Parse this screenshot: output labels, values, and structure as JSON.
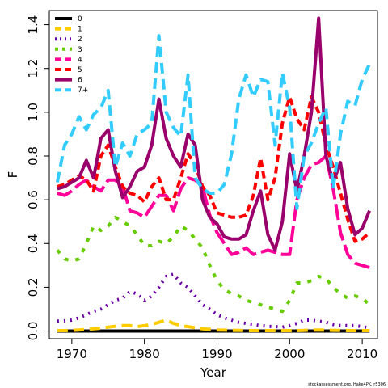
{
  "credit": "stockassessment.org, Hake4PK, r5306",
  "chart_data": {
    "type": "line",
    "xlabel": "Year",
    "ylabel": "F",
    "xlim": [
      1966.9,
      2012.1
    ],
    "ylim": [
      -0.035,
      1.465
    ],
    "x_ticks": [
      1970,
      1980,
      1990,
      2000,
      2010
    ],
    "y_ticks": [
      0.0,
      0.2,
      0.4,
      0.6,
      0.8,
      1.0,
      1.2,
      1.4
    ],
    "x_tick_labels": [
      "1970",
      "1980",
      "1990",
      "2000",
      "2010"
    ],
    "y_tick_labels": [
      "0.0",
      "0.2",
      "0.4",
      "0.6",
      "0.8",
      "1.0",
      "1.2",
      "1.4"
    ],
    "grid": false,
    "legend_position": "top-left",
    "x": [
      1968,
      1969,
      1970,
      1971,
      1972,
      1973,
      1974,
      1975,
      1976,
      1977,
      1978,
      1979,
      1980,
      1981,
      1982,
      1983,
      1984,
      1985,
      1986,
      1987,
      1988,
      1989,
      1990,
      1991,
      1992,
      1993,
      1994,
      1995,
      1996,
      1997,
      1998,
      1999,
      2000,
      2001,
      2002,
      2003,
      2004,
      2005,
      2006,
      2007,
      2008,
      2009,
      2010,
      2011
    ],
    "series": [
      {
        "name": "0",
        "color": "#000000",
        "dash": "solid",
        "values": [
          0.0,
          0.0,
          0.0,
          0.0,
          0.0,
          0.0,
          0.0,
          0.0,
          0.0,
          0.0,
          0.0,
          0.0,
          0.0,
          0.0,
          0.0,
          0.0,
          0.0,
          0.0,
          0.0,
          0.0,
          0.0,
          0.0,
          0.0,
          0.0,
          0.0,
          0.0,
          0.0,
          0.0,
          0.0,
          0.0,
          0.0,
          0.0,
          0.0,
          0.0,
          0.0,
          0.0,
          0.0,
          0.0,
          0.0,
          0.0,
          0.0,
          0.0,
          0.0,
          0.0
        ]
      },
      {
        "name": "1",
        "color": "#FFCC00",
        "dash": "long",
        "values": [
          0.002,
          0.002,
          0.003,
          0.005,
          0.008,
          0.01,
          0.013,
          0.018,
          0.022,
          0.025,
          0.025,
          0.02,
          0.025,
          0.03,
          0.04,
          0.05,
          0.035,
          0.025,
          0.02,
          0.015,
          0.01,
          0.008,
          0.005,
          0.004,
          0.003,
          0.003,
          0.002,
          0.002,
          0.002,
          0.002,
          0.002,
          0.002,
          0.002,
          0.002,
          0.003,
          0.004,
          0.005,
          0.004,
          0.003,
          0.003,
          0.002,
          0.002,
          0.002,
          0.002
        ]
      },
      {
        "name": "2",
        "color": "#6A00A8",
        "dash": "dot",
        "values": [
          0.045,
          0.047,
          0.05,
          0.06,
          0.075,
          0.09,
          0.1,
          0.12,
          0.14,
          0.15,
          0.18,
          0.17,
          0.14,
          0.16,
          0.2,
          0.25,
          0.26,
          0.22,
          0.2,
          0.16,
          0.12,
          0.1,
          0.075,
          0.06,
          0.05,
          0.04,
          0.035,
          0.03,
          0.025,
          0.022,
          0.02,
          0.018,
          0.025,
          0.035,
          0.05,
          0.05,
          0.045,
          0.04,
          0.03,
          0.025,
          0.025,
          0.025,
          0.02,
          0.015
        ]
      },
      {
        "name": "3",
        "color": "#66CC00",
        "dash": "dashdot",
        "values": [
          0.37,
          0.33,
          0.32,
          0.33,
          0.4,
          0.48,
          0.46,
          0.48,
          0.52,
          0.5,
          0.48,
          0.44,
          0.39,
          0.39,
          0.41,
          0.4,
          0.43,
          0.48,
          0.46,
          0.42,
          0.38,
          0.3,
          0.23,
          0.19,
          0.17,
          0.16,
          0.14,
          0.13,
          0.12,
          0.11,
          0.1,
          0.09,
          0.14,
          0.22,
          0.22,
          0.23,
          0.25,
          0.24,
          0.2,
          0.17,
          0.15,
          0.16,
          0.15,
          0.12
        ]
      },
      {
        "name": "4",
        "color": "#FF0099",
        "dash": "longdash",
        "values": [
          0.63,
          0.62,
          0.64,
          0.67,
          0.69,
          0.66,
          0.64,
          0.69,
          0.69,
          0.66,
          0.55,
          0.54,
          0.52,
          0.57,
          0.62,
          0.62,
          0.55,
          0.65,
          0.7,
          0.69,
          0.66,
          0.53,
          0.45,
          0.4,
          0.35,
          0.36,
          0.38,
          0.35,
          0.36,
          0.37,
          0.36,
          0.35,
          0.35,
          0.6,
          0.7,
          0.76,
          0.77,
          0.8,
          0.65,
          0.45,
          0.35,
          0.31,
          0.3,
          0.29
        ]
      },
      {
        "name": "5",
        "color": "#FF0000",
        "dash": "dash",
        "values": [
          0.66,
          0.67,
          0.69,
          0.71,
          0.69,
          0.64,
          0.8,
          0.85,
          0.75,
          0.66,
          0.63,
          0.62,
          0.59,
          0.66,
          0.7,
          0.6,
          0.6,
          0.7,
          0.81,
          0.76,
          0.66,
          0.62,
          0.54,
          0.53,
          0.52,
          0.52,
          0.53,
          0.62,
          0.79,
          0.6,
          0.7,
          0.95,
          1.07,
          0.97,
          0.92,
          1.07,
          1.0,
          0.85,
          0.75,
          0.63,
          0.51,
          0.41,
          0.42,
          0.45
        ]
      },
      {
        "name": "6",
        "color": "#99006B",
        "dash": "solid",
        "values": [
          0.65,
          0.66,
          0.68,
          0.7,
          0.78,
          0.7,
          0.88,
          0.92,
          0.73,
          0.61,
          0.66,
          0.73,
          0.75,
          0.85,
          1.06,
          0.88,
          0.8,
          0.75,
          0.9,
          0.85,
          0.6,
          0.52,
          0.49,
          0.43,
          0.42,
          0.42,
          0.44,
          0.55,
          0.64,
          0.44,
          0.37,
          0.5,
          0.81,
          0.64,
          0.8,
          1.0,
          1.43,
          0.8,
          0.68,
          0.77,
          0.56,
          0.44,
          0.47,
          0.55
        ]
      },
      {
        "name": "7+",
        "color": "#33CCFF",
        "dash": "long",
        "values": [
          0.68,
          0.85,
          0.9,
          0.98,
          0.92,
          0.99,
          1.02,
          1.1,
          0.75,
          0.86,
          0.8,
          0.9,
          0.92,
          0.95,
          1.35,
          1.0,
          0.93,
          0.89,
          1.17,
          0.7,
          0.65,
          0.63,
          0.63,
          0.67,
          0.81,
          1.06,
          1.17,
          1.07,
          1.15,
          1.14,
          0.85,
          1.18,
          1.02,
          0.56,
          0.8,
          0.86,
          0.95,
          1.02,
          0.65,
          0.9,
          1.05,
          1.03,
          1.15,
          1.22
        ]
      }
    ]
  }
}
